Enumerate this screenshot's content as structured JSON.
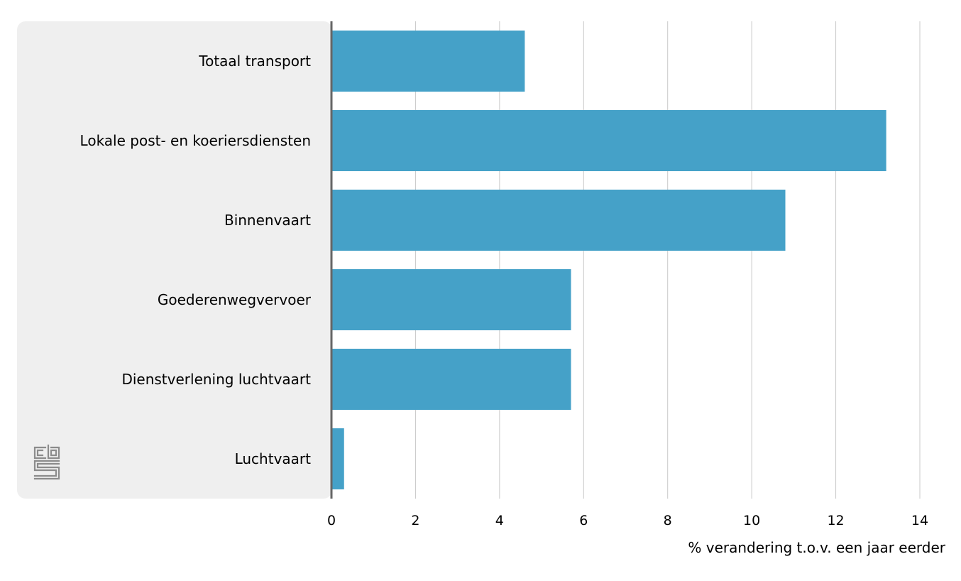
{
  "chart_data": {
    "type": "bar",
    "orientation": "horizontal",
    "categories": [
      "Totaal transport",
      "Lokale post- en koeriersdiensten",
      "Binnenvaart",
      "Goederenwegvervoer",
      "Dienstverlening luchtvaart",
      "Luchtvaart"
    ],
    "values": [
      4.6,
      13.2,
      10.8,
      5.7,
      5.7,
      0.3
    ],
    "xlabel": "% verandering t.o.v. een jaar eerder",
    "xlim": [
      0,
      14
    ],
    "xticks": [
      0,
      2,
      4,
      6,
      8,
      10,
      12,
      14
    ],
    "grid": "vertical",
    "legend": "none"
  },
  "colors": {
    "bar": "#45a1c8",
    "label_panel": "#efefef",
    "gridline": "#c8c8c8",
    "zero_axis": "#666666",
    "logo": "#8c8c8c"
  },
  "logo": {
    "icon": "cbs-logo-icon"
  }
}
